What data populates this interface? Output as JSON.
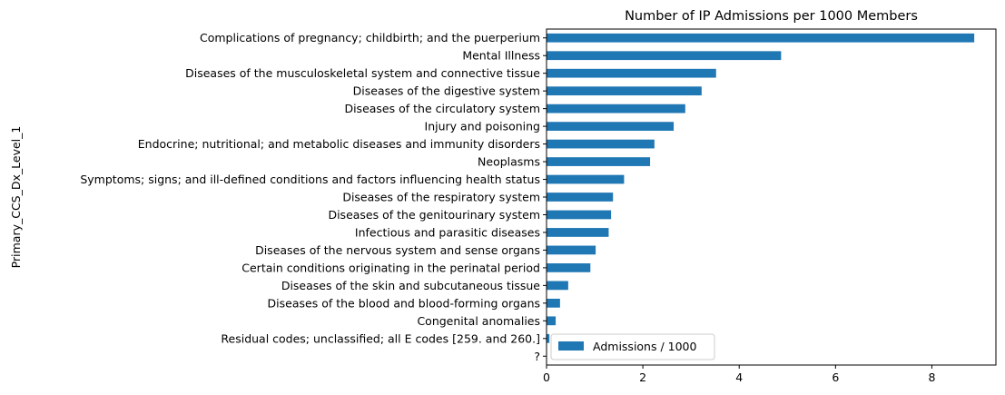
{
  "chart_data": {
    "type": "bar",
    "orientation": "horizontal",
    "title": "Number of IP Admissions per 1000 Members",
    "xlabel": "",
    "ylabel": "Primary_CCS_Dx_Level_1",
    "categories": [
      "Complications of pregnancy; childbirth; and the puerperium",
      "Mental Illness",
      "Diseases of the musculoskeletal system and connective tissue",
      "Diseases of the digestive system",
      "Diseases of the circulatory system",
      "Injury and poisoning",
      "Endocrine; nutritional; and metabolic diseases and immunity disorders",
      "Neoplasms",
      "Symptoms; signs; and ill-defined conditions and factors influencing health status",
      "Diseases of the respiratory system",
      "Diseases of the genitourinary system",
      "Infectious and parasitic diseases",
      "Diseases of the nervous system and sense organs",
      "Certain conditions originating in the perinatal period",
      "Diseases of the skin and subcutaneous tissue",
      "Diseases of the blood and blood-forming organs",
      "Congenital anomalies",
      "Residual codes; unclassified; all E codes [259. and 260.]",
      "?"
    ],
    "series": [
      {
        "name": "Admissions / 1000",
        "color": "#1f77b4",
        "values": [
          8.88,
          4.87,
          3.52,
          3.22,
          2.88,
          2.64,
          2.24,
          2.15,
          1.61,
          1.38,
          1.34,
          1.29,
          1.02,
          0.91,
          0.45,
          0.28,
          0.19,
          0.06,
          0.01
        ]
      }
    ],
    "xlim": [
      0,
      9.33
    ],
    "xticks": [
      "0",
      "2",
      "4",
      "6",
      "8"
    ],
    "xtick_values": [
      0,
      2,
      4,
      6,
      8
    ],
    "grid": false,
    "legend_position": "lower-right"
  }
}
